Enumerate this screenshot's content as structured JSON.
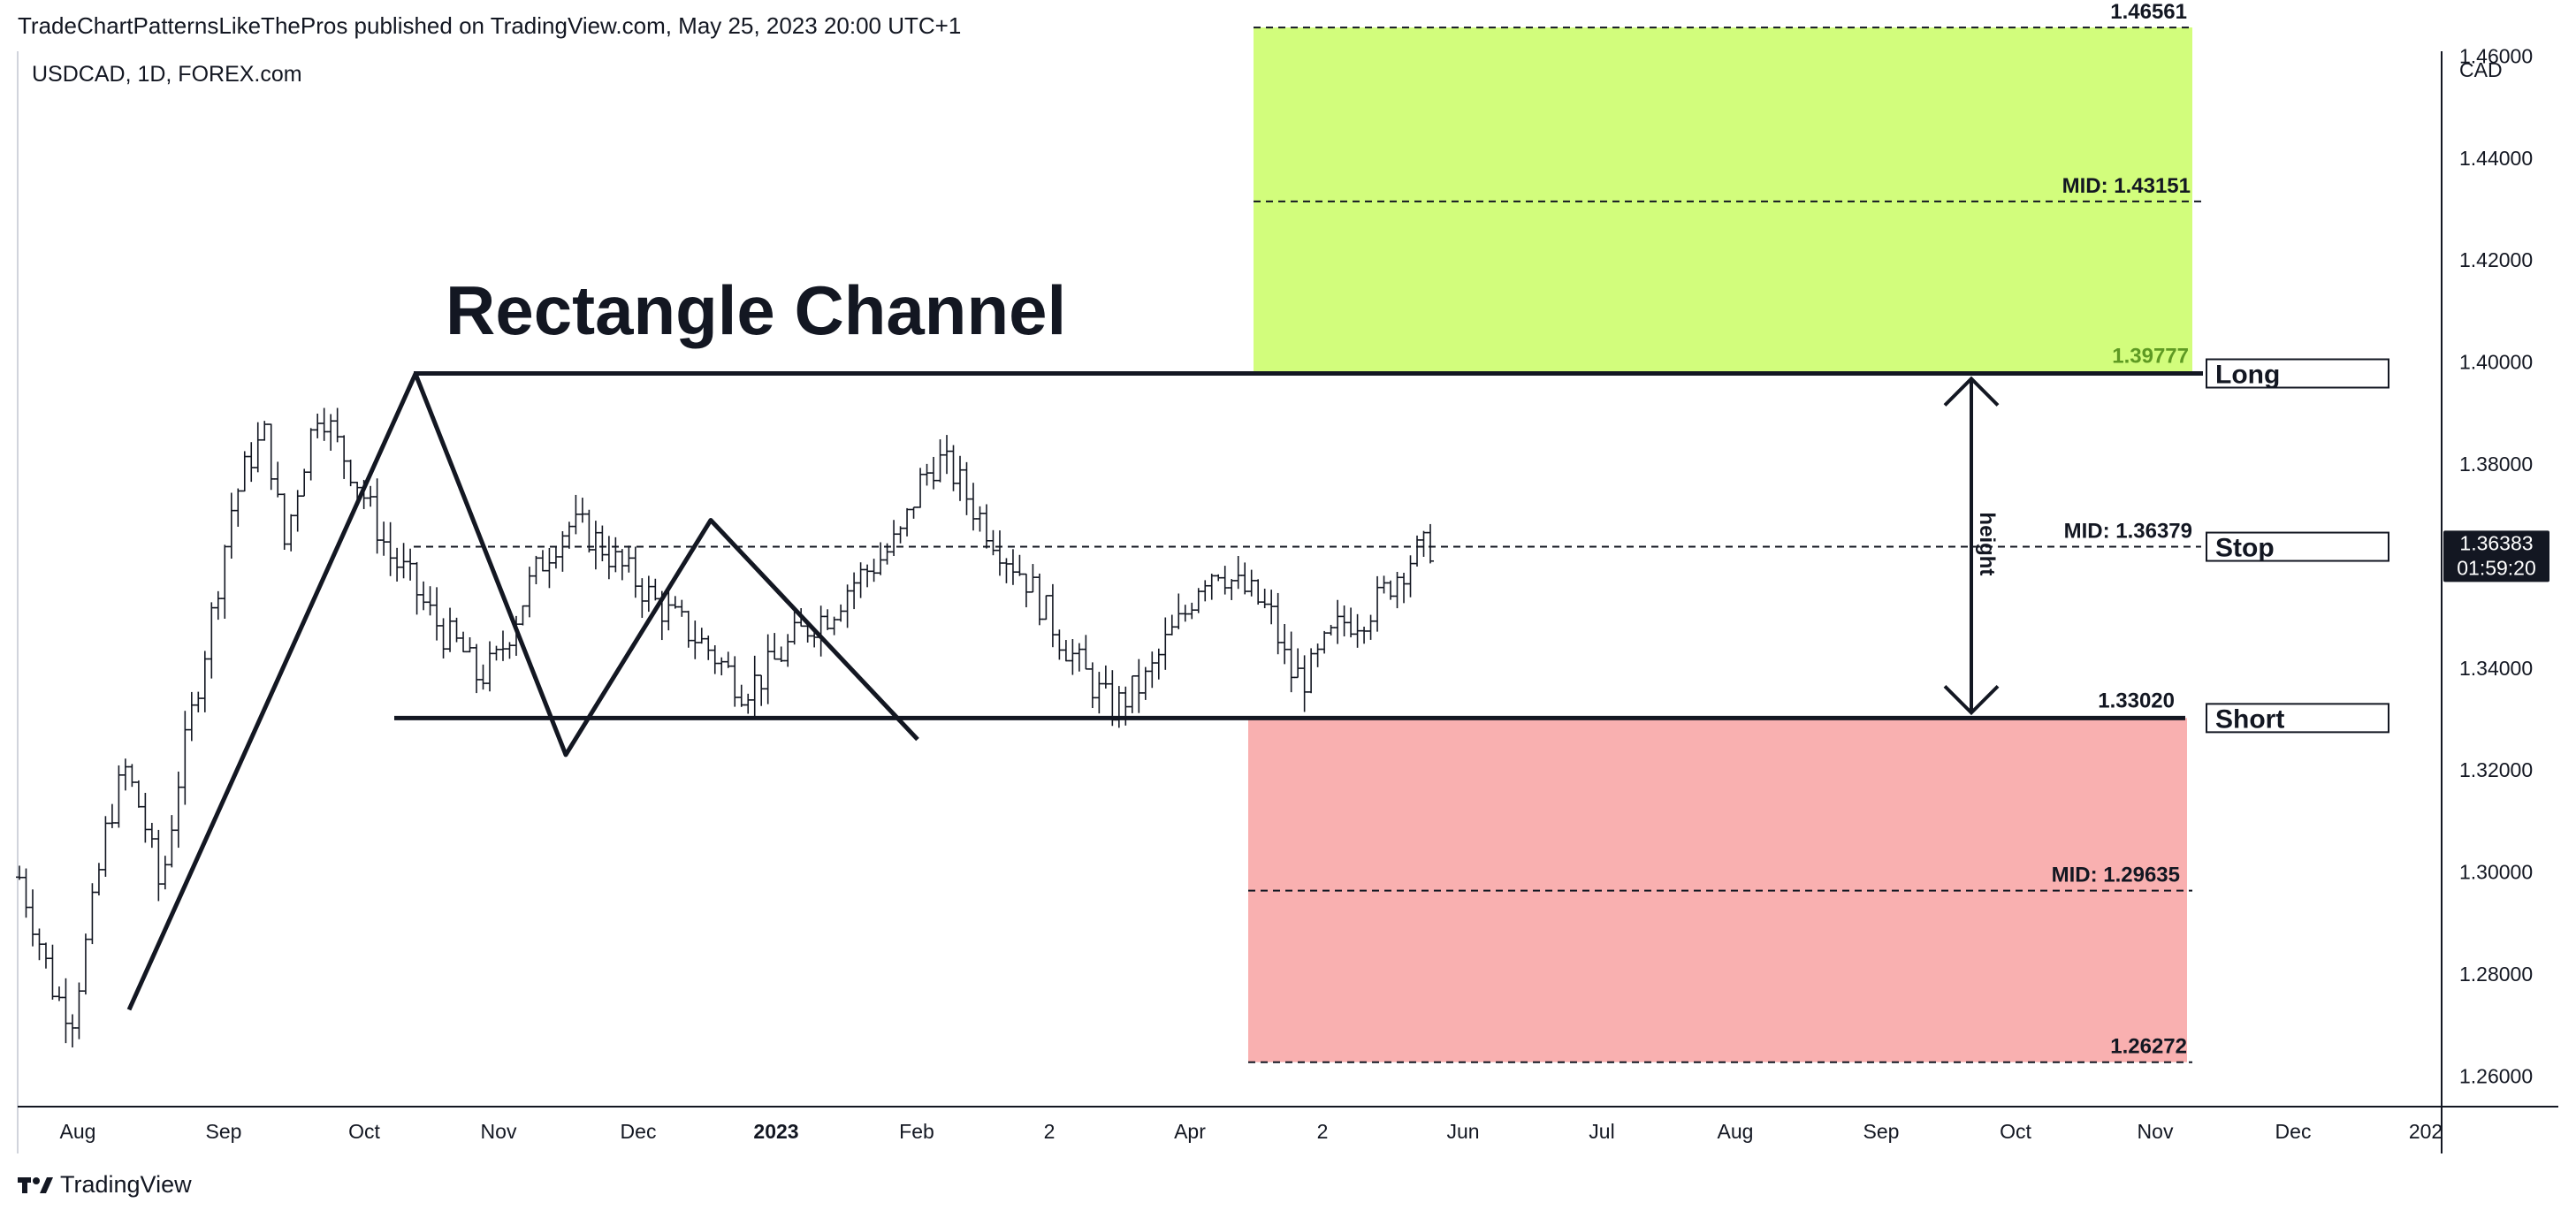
{
  "header": {
    "published_line": "TradeChartPatternsLikeThePros published on TradingView.com, May 25, 2023 20:00 UTC+1",
    "symbol_line": "USDCAD, 1D, FOREX.com"
  },
  "footer": {
    "brand": "TradingView",
    "logo_icon": "tradingview-logo-icon"
  },
  "colors": {
    "long_zone": "#d2fd7c",
    "short_zone": "#f9b0b0",
    "price_label_bg": "#131722"
  },
  "chart_data": {
    "type": "ohlc",
    "title": "Rectangle Channel",
    "symbol": "USDCAD",
    "interval": "1D",
    "source": "FOREX.com",
    "currency_label": "CAD",
    "ylim": [
      1.254,
      1.471
    ],
    "y_ticks": [
      "1.26000",
      "1.28000",
      "1.30000",
      "1.32000",
      "1.34000",
      "1.36000",
      "1.38000",
      "1.40000",
      "1.42000",
      "1.44000",
      "1.46000"
    ],
    "x_ticks": [
      "Aug",
      "Sep",
      "Oct",
      "Nov",
      "Dec",
      "2023",
      "Feb",
      "2",
      "Apr",
      "2",
      "Jun",
      "Jul",
      "Aug",
      "Sep",
      "Oct",
      "Nov",
      "Dec",
      "202"
    ],
    "current_price": "1.36383",
    "countdown": "01:59:20",
    "levels": {
      "long_target": "1.46561",
      "long_mid": "MID: 1.43151",
      "long_entry": "1.39777",
      "channel_mid": "MID: 1.36379",
      "short_entry": "1.33020",
      "short_mid": "MID: 1.29635",
      "short_target": "1.26272"
    },
    "level_values": {
      "long_target": 1.46561,
      "long_mid": 1.43151,
      "resistance": 1.39777,
      "channel_mid": 1.36379,
      "support": 1.3302,
      "short_mid": 1.29635,
      "short_target": 1.26272
    },
    "tags": {
      "long": "Long",
      "stop": "Stop",
      "short": "Short"
    },
    "height_label": "height",
    "zigzag": [
      1.273,
      1.3977,
      1.323,
      1.369,
      1.326
    ],
    "price_path": [
      1.299,
      1.288,
      1.276,
      1.272,
      1.29,
      1.31,
      1.32,
      1.311,
      1.296,
      1.318,
      1.335,
      1.352,
      1.371,
      1.381,
      1.386,
      1.364,
      1.379,
      1.392,
      1.384,
      1.378,
      1.37,
      1.362,
      1.358,
      1.352,
      1.347,
      1.344,
      1.338,
      1.341,
      1.349,
      1.357,
      1.363,
      1.368,
      1.367,
      1.364,
      1.36,
      1.357,
      1.353,
      1.35,
      1.347,
      1.344,
      1.34,
      1.336,
      1.338,
      1.342,
      1.346,
      1.349,
      1.351,
      1.356,
      1.359,
      1.362,
      1.366,
      1.376,
      1.381,
      1.378,
      1.372,
      1.367,
      1.362,
      1.358,
      1.352,
      1.346,
      1.341,
      1.336,
      1.332,
      1.335,
      1.338,
      1.345,
      1.35,
      1.358,
      1.36,
      1.356,
      1.354,
      1.35,
      1.339,
      1.338,
      1.344,
      1.349,
      1.35,
      1.353,
      1.358,
      1.362,
      1.364
    ]
  }
}
